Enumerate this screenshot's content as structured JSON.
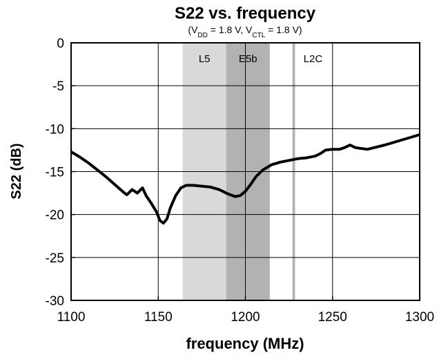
{
  "chart_data": {
    "type": "line",
    "title": "S22 vs. frequency",
    "subtitle": [
      "(V",
      "DD",
      " = 1.8 V, V",
      "CTL",
      " = 1.8 V)"
    ],
    "x_label": "frequency (MHz)",
    "y_label": "S22 (dB)",
    "xlim": [
      1100,
      1300
    ],
    "xticks": [
      1100,
      1150,
      1200,
      1250,
      1300
    ],
    "ylim": [
      -30,
      0
    ],
    "yticks": [
      0,
      -5,
      -10,
      -15,
      -20,
      -25,
      -30
    ],
    "grid": true,
    "bands": [
      {
        "name": "L5",
        "range": [
          1164,
          1189
        ],
        "color": "#d9d9d9"
      },
      {
        "name": "E5b",
        "range": [
          1189,
          1214
        ],
        "color": "#b2b2b2"
      },
      {
        "name": "L2C",
        "range": [
          1227,
          1228.5
        ],
        "color": "#b2b2b2"
      }
    ],
    "series": [
      {
        "name": "S22",
        "color": "#000000",
        "x": [
          1100,
          1105,
          1110,
          1115,
          1120,
          1125,
          1130,
          1132,
          1135,
          1138,
          1141,
          1143,
          1146,
          1149,
          1151,
          1153,
          1155,
          1157,
          1160,
          1163,
          1166,
          1170,
          1175,
          1180,
          1185,
          1190,
          1194,
          1197,
          1200,
          1203,
          1206,
          1210,
          1215,
          1220,
          1225,
          1230,
          1235,
          1240,
          1243,
          1246,
          1250,
          1254,
          1257,
          1260,
          1263,
          1266,
          1270,
          1280,
          1290,
          1300
        ],
        "values": [
          -12.7,
          -13.3,
          -14.0,
          -14.8,
          -15.6,
          -16.5,
          -17.4,
          -17.7,
          -17.1,
          -17.5,
          -16.9,
          -17.8,
          -18.7,
          -19.7,
          -20.7,
          -21.0,
          -20.5,
          -19.2,
          -17.8,
          -16.9,
          -16.6,
          -16.6,
          -16.7,
          -16.8,
          -17.1,
          -17.6,
          -17.9,
          -17.8,
          -17.3,
          -16.5,
          -15.6,
          -14.8,
          -14.2,
          -13.9,
          -13.7,
          -13.5,
          -13.4,
          -13.2,
          -12.9,
          -12.5,
          -12.4,
          -12.4,
          -12.2,
          -11.9,
          -12.2,
          -12.3,
          -12.4,
          -11.9,
          -11.3,
          -10.7
        ]
      }
    ]
  }
}
